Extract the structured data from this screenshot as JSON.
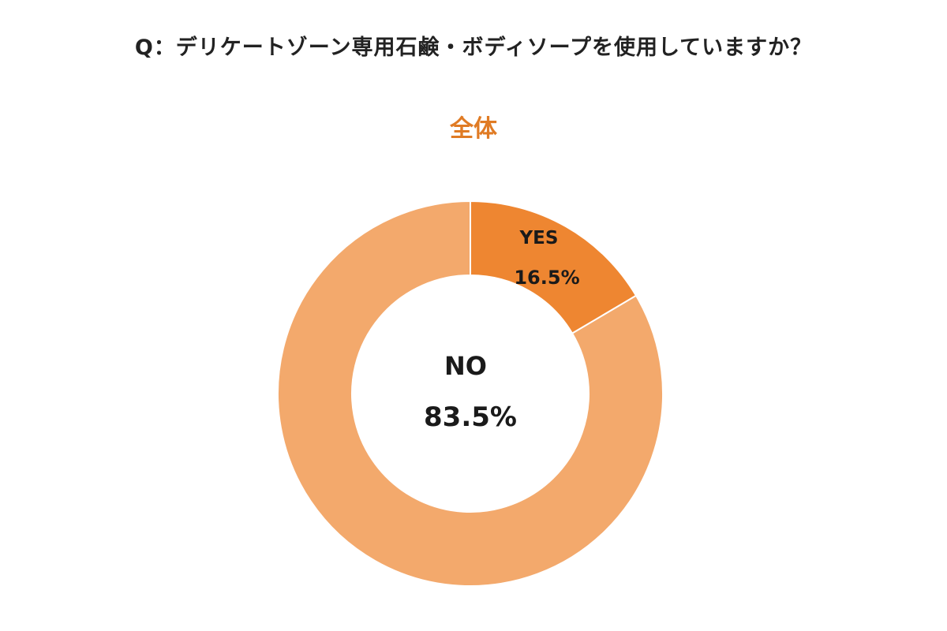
{
  "header": {
    "question": "Q：デリケートゾーン専用石鹸・ボディソープを使用していますか？",
    "subtitle": "全体"
  },
  "colors": {
    "subtitle": "#e07b24",
    "yes": "#ee8631",
    "no": "#f3a96c",
    "separator": "#ffffff"
  },
  "chart_data": {
    "type": "pie",
    "variant": "donut",
    "title": "全体",
    "slices": [
      {
        "label": "YES",
        "value": 16.5,
        "value_label": "16.5%"
      },
      {
        "label": "NO",
        "value": 83.5,
        "value_label": "83.5%"
      }
    ],
    "legend": "none"
  }
}
